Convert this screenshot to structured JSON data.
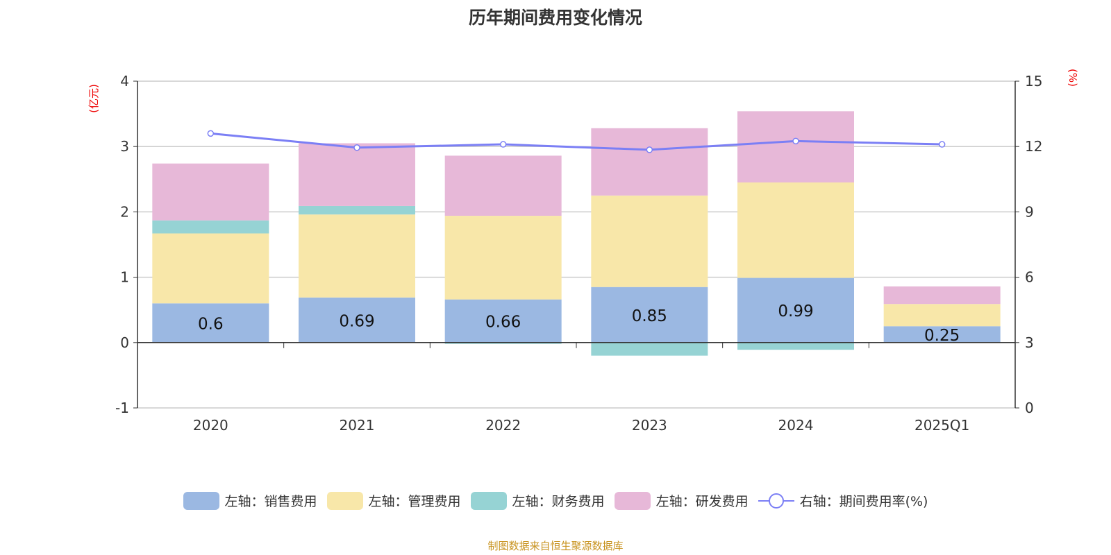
{
  "chart_data": {
    "type": "bar",
    "title": "历年期间费用变化情况",
    "source": "制图数据来自恒生聚源数据库",
    "left_axis": {
      "label": "(亿元)",
      "ylim": [
        -1,
        4
      ],
      "ticks": [
        "-1",
        "0",
        "1",
        "2",
        "3",
        "4"
      ],
      "values": [
        -1,
        0,
        1,
        2,
        3,
        4
      ]
    },
    "right_axis": {
      "label": "(%)",
      "ylim": [
        0,
        15
      ],
      "ticks": [
        "0",
        "3",
        "6",
        "9",
        "12",
        "15"
      ],
      "values": [
        0,
        3,
        6,
        9,
        12,
        15
      ]
    },
    "categories": [
      "2020",
      "2021",
      "2022",
      "2023",
      "2024",
      "2025Q1"
    ],
    "series": [
      {
        "name": "左轴：销售费用",
        "type": "bar",
        "color": "#9bb8e2",
        "values": [
          0.6,
          0.69,
          0.66,
          0.85,
          0.99,
          0.25
        ],
        "labels": [
          "0.6",
          "0.69",
          "0.66",
          "0.85",
          "0.99",
          "0.25"
        ]
      },
      {
        "name": "左轴：管理费用",
        "type": "bar",
        "color": "#f8e7a9",
        "values": [
          1.07,
          1.27,
          1.28,
          1.4,
          1.46,
          0.34
        ]
      },
      {
        "name": "左轴：财务费用",
        "type": "bar",
        "color": "#96d3d4",
        "values": [
          0.2,
          0.13,
          -0.02,
          -0.2,
          -0.11,
          0.0
        ]
      },
      {
        "name": "左轴：研发费用",
        "type": "bar",
        "color": "#e7b8d8",
        "values": [
          0.87,
          0.96,
          0.92,
          1.03,
          1.09,
          0.27
        ]
      },
      {
        "name": "右轴：期间费用率(%)",
        "type": "line",
        "color": "#7b7ff5",
        "values": [
          12.6,
          11.95,
          12.1,
          11.85,
          12.25,
          12.1
        ]
      }
    ],
    "legend_position": "bottom",
    "grid": true
  }
}
